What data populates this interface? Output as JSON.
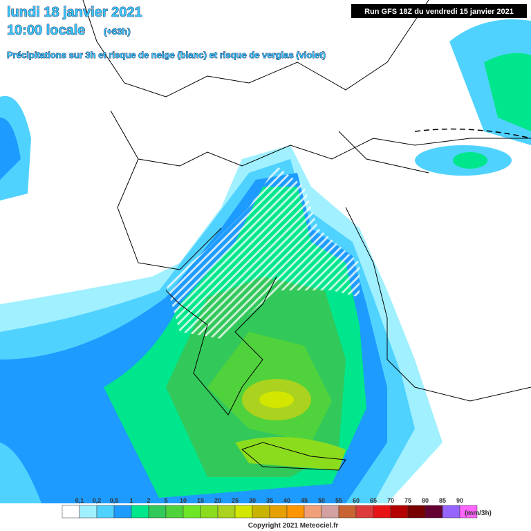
{
  "header": {
    "date": "lundi 18 janvier 2021",
    "time": "10:00 locale",
    "lead": "(+63h)",
    "subtitle": "Précipitations sur 3h et risque de neige (blanc) et risque de verglas (violet)",
    "run": "Run GFS 18Z du vendredi 15 janvier 2021"
  },
  "legend": {
    "labels": [
      "0,1",
      "0,2",
      "0,5",
      "1",
      "2",
      "5",
      "10",
      "15",
      "20",
      "25",
      "30",
      "35",
      "40",
      "45",
      "50",
      "55",
      "60",
      "65",
      "70",
      "75",
      "80",
      "85",
      "90"
    ],
    "colors": [
      "#ffffff",
      "#a0f0ff",
      "#50d2ff",
      "#1e9bff",
      "#00e68c",
      "#32c85a",
      "#50d23c",
      "#6ee628",
      "#8cdc1e",
      "#aad21e",
      "#d2e600",
      "#c8b400",
      "#e6a000",
      "#ff9600",
      "#f0a078",
      "#d2a0a0",
      "#c86432",
      "#dc3c3c",
      "#e61414",
      "#b40000",
      "#780000",
      "#640032",
      "#9664ff",
      "#ff64ff"
    ],
    "unit": "(mm/3h)"
  },
  "footer": {
    "copyright": "Copyright 2021 Meteociel.fr"
  }
}
